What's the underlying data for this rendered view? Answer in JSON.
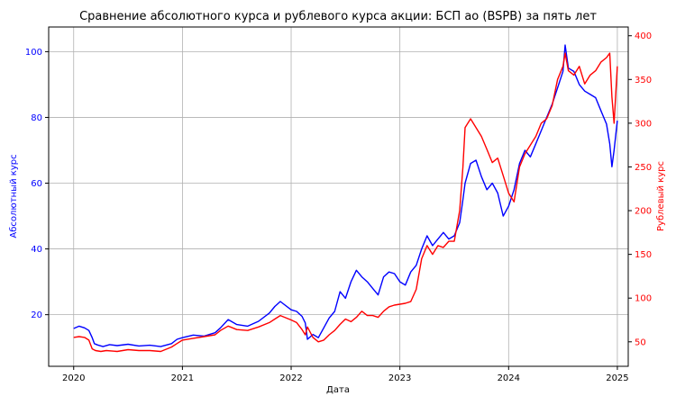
{
  "chart_data": {
    "type": "line",
    "title": "Сравнение абсолютного курса и рублевого курса акции: БСП ао (BSPB) за пять лет",
    "xlabel": "Дата",
    "ylabel_left": "Абсолютный курс",
    "ylabel_right": "Рублевый курс",
    "x_ticks": [
      "2020",
      "2021",
      "2022",
      "2023",
      "2024",
      "2025"
    ],
    "xlim": [
      2019.77,
      2025.1
    ],
    "y_left_ticks": [
      20,
      40,
      60,
      80,
      100
    ],
    "y_left_lim": [
      4.3,
      107.5
    ],
    "y_right_ticks": [
      50,
      100,
      150,
      200,
      250,
      300,
      350,
      400
    ],
    "y_right_lim": [
      22,
      410
    ],
    "grid": true,
    "colors": {
      "left_axis": "#0000ff",
      "right_axis": "#ff0000",
      "grid": "#b0b0b0"
    },
    "series": [
      {
        "axis": "left",
        "color": "#0000ff",
        "x": [
          2020.0,
          2020.05,
          2020.1,
          2020.14,
          2020.17,
          2020.19,
          2020.22,
          2020.27,
          2020.33,
          2020.4,
          2020.5,
          2020.6,
          2020.7,
          2020.8,
          2020.9,
          2020.95,
          2021.0,
          2021.1,
          2021.2,
          2021.3,
          2021.35,
          2021.42,
          2021.5,
          2021.6,
          2021.7,
          2021.8,
          2021.85,
          2021.9,
          2022.0,
          2022.05,
          2022.1,
          2022.13,
          2022.15,
          2022.2,
          2022.25,
          2022.3,
          2022.35,
          2022.4,
          2022.45,
          2022.5,
          2022.55,
          2022.6,
          2022.65,
          2022.7,
          2022.75,
          2022.8,
          2022.85,
          2022.9,
          2022.95,
          2023.0,
          2023.05,
          2023.1,
          2023.15,
          2023.2,
          2023.25,
          2023.3,
          2023.35,
          2023.4,
          2023.45,
          2023.5,
          2023.55,
          2023.58,
          2023.6,
          2023.65,
          2023.7,
          2023.75,
          2023.8,
          2023.85,
          2023.9,
          2023.95,
          2024.0,
          2024.05,
          2024.1,
          2024.15,
          2024.2,
          2024.25,
          2024.3,
          2024.35,
          2024.4,
          2024.45,
          2024.5,
          2024.52,
          2024.55,
          2024.6,
          2024.65,
          2024.7,
          2024.75,
          2024.8,
          2024.85,
          2024.9,
          2024.93,
          2024.95,
          2024.97,
          2025.0
        ],
        "values": [
          15.8,
          16.5,
          16.0,
          15.2,
          13.0,
          11.2,
          10.8,
          10.3,
          10.9,
          10.6,
          11.0,
          10.5,
          10.7,
          10.3,
          11.2,
          12.5,
          13.0,
          13.8,
          13.5,
          14.5,
          16.0,
          18.5,
          17.0,
          16.5,
          18.0,
          20.5,
          22.5,
          24.0,
          21.5,
          21.0,
          19.5,
          17.5,
          12.5,
          14.0,
          13.0,
          16.0,
          19.0,
          21.0,
          27.0,
          25.0,
          30.0,
          33.5,
          31.5,
          30.0,
          28.0,
          26.0,
          31.5,
          33.0,
          32.5,
          30.0,
          29.0,
          33.0,
          35.0,
          40.0,
          44.0,
          41.0,
          43.0,
          45.0,
          43.0,
          44.0,
          48.0,
          55.0,
          60.0,
          66.0,
          67.0,
          62.0,
          58.0,
          60.0,
          57.0,
          50.0,
          53.0,
          58.0,
          66.0,
          70.0,
          68.0,
          72.0,
          76.0,
          80.0,
          84.0,
          89.0,
          94.0,
          102.0,
          95.0,
          94.0,
          90.0,
          88.0,
          87.0,
          86.0,
          82.0,
          78.0,
          72.0,
          65.0,
          70.0,
          79.0
        ]
      },
      {
        "axis": "right",
        "color": "#ff0000",
        "x": [
          2020.0,
          2020.05,
          2020.1,
          2020.14,
          2020.17,
          2020.2,
          2020.25,
          2020.3,
          2020.4,
          2020.5,
          2020.6,
          2020.7,
          2020.8,
          2020.9,
          2020.95,
          2021.0,
          2021.1,
          2021.2,
          2021.3,
          2021.35,
          2021.42,
          2021.5,
          2021.6,
          2021.7,
          2021.8,
          2021.85,
          2021.9,
          2022.0,
          2022.05,
          2022.1,
          2022.13,
          2022.15,
          2022.2,
          2022.25,
          2022.3,
          2022.35,
          2022.4,
          2022.45,
          2022.5,
          2022.55,
          2022.6,
          2022.65,
          2022.7,
          2022.75,
          2022.8,
          2022.85,
          2022.9,
          2022.95,
          2023.0,
          2023.05,
          2023.1,
          2023.15,
          2023.2,
          2023.25,
          2023.3,
          2023.35,
          2023.4,
          2023.45,
          2023.5,
          2023.55,
          2023.58,
          2023.6,
          2023.65,
          2023.7,
          2023.75,
          2023.8,
          2023.85,
          2023.9,
          2023.95,
          2024.0,
          2024.05,
          2024.1,
          2024.15,
          2024.2,
          2024.25,
          2024.3,
          2024.35,
          2024.4,
          2024.45,
          2024.5,
          2024.52,
          2024.55,
          2024.6,
          2024.65,
          2024.7,
          2024.75,
          2024.8,
          2024.85,
          2024.9,
          2024.93,
          2024.95,
          2024.97,
          2025.0
        ],
        "values": [
          55,
          56,
          55,
          52,
          42,
          40,
          39,
          40,
          39,
          41,
          40,
          40,
          39,
          44,
          48,
          52,
          54,
          56,
          58,
          63,
          68,
          64,
          63,
          67,
          72,
          76,
          80,
          75,
          72,
          64,
          58,
          67,
          55,
          50,
          52,
          58,
          63,
          70,
          76,
          73,
          78,
          85,
          80,
          80,
          78,
          85,
          90,
          92,
          93,
          94,
          96,
          110,
          145,
          160,
          150,
          160,
          158,
          165,
          165,
          200,
          250,
          295,
          305,
          295,
          285,
          270,
          255,
          260,
          240,
          220,
          210,
          250,
          265,
          275,
          285,
          300,
          305,
          320,
          350,
          365,
          380,
          360,
          355,
          365,
          345,
          355,
          360,
          370,
          375,
          380,
          330,
          300,
          365
        ]
      }
    ]
  }
}
